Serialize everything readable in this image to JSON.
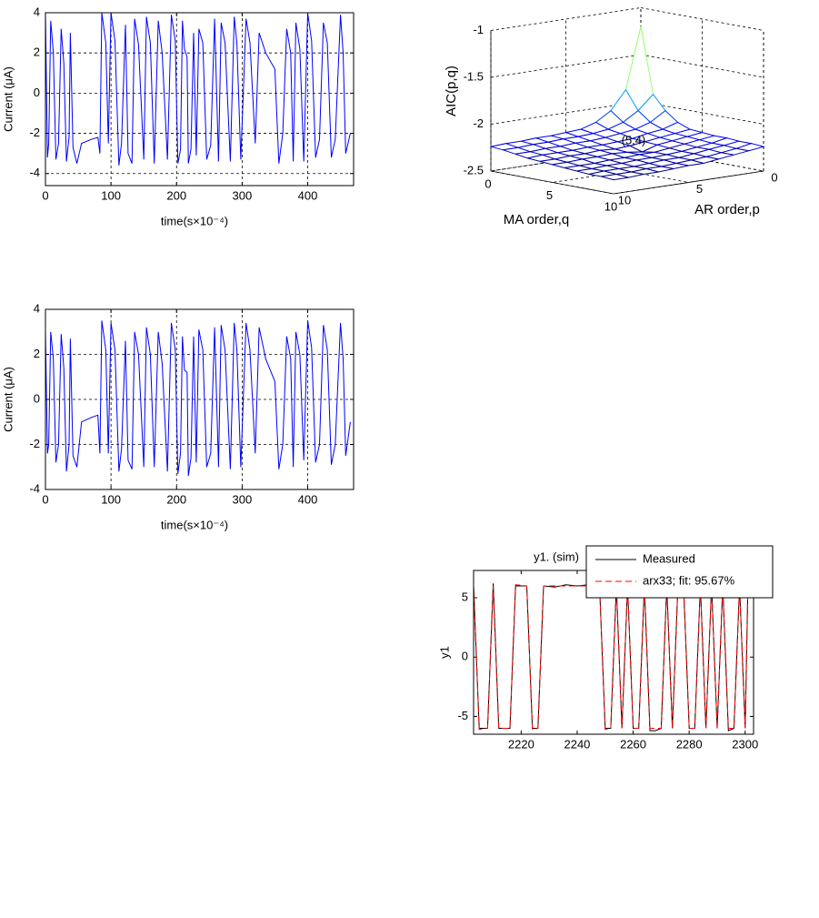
{
  "chart_data": [
    {
      "type": "line",
      "ylabel": "Current (μA)",
      "xlabel": "time(s×10⁻⁴)",
      "x": [
        0,
        3,
        5,
        8,
        12,
        16,
        20,
        24,
        28,
        32,
        36,
        38,
        42,
        48,
        55,
        70,
        80,
        83,
        86,
        92,
        96,
        100,
        106,
        112,
        116,
        122,
        126,
        132,
        136,
        142,
        150,
        154,
        160,
        166,
        172,
        178,
        186,
        192,
        198,
        202,
        206,
        209,
        212,
        216,
        218,
        222,
        226,
        230,
        234,
        240,
        246,
        252,
        258,
        264,
        268,
        274,
        282,
        288,
        292,
        298,
        306,
        312,
        320,
        326,
        336,
        350,
        356,
        362,
        368,
        374,
        378,
        382,
        388,
        394,
        400,
        406,
        412,
        418,
        424,
        430,
        436,
        442,
        450,
        454,
        458,
        465
      ],
      "series": [
        {
          "color": "#0000ff",
          "values": [
            4,
            -3.2,
            -2.5,
            3.6,
            2,
            -3.3,
            -2.5,
            3.2,
            1.5,
            -3.4,
            -2.2,
            3,
            -2.7,
            -3.5,
            -2.5,
            -2.3,
            -2.2,
            -3,
            4,
            2.5,
            -2.5,
            4,
            2.6,
            -3.6,
            -2.5,
            3.4,
            -3,
            -3.5,
            3.7,
            2.4,
            -3.3,
            3.8,
            2.5,
            -3.5,
            3.6,
            2,
            -3.3,
            3.9,
            2.6,
            -3.5,
            -2.8,
            3.6,
            2.2,
            1.8,
            -3.5,
            -2.8,
            3,
            -3.1,
            3.2,
            2.5,
            -3.3,
            -2.6,
            3.7,
            -3.4,
            3.5,
            2.5,
            -3.4,
            3.8,
            2.5,
            -3.3,
            3.7,
            2.5,
            -2.5,
            3,
            2,
            1.2,
            -3.5,
            -2,
            3.2,
            2,
            -3.4,
            3.5,
            2.2,
            -3.4,
            4,
            2.6,
            -3.2,
            -2.3,
            3.5,
            2.5,
            -3.2,
            -2.3,
            3.9,
            2,
            -3,
            -2
          ]
        }
      ],
      "xlim": [
        0,
        470
      ],
      "ylim": [
        -4.6,
        4
      ],
      "xticks": [
        0,
        100,
        200,
        300,
        400
      ],
      "yticks": [
        -4,
        -2,
        0,
        2,
        4
      ],
      "grid": true
    },
    {
      "type": "line",
      "ylabel": "Current (μA)",
      "xlabel": "time(s×10⁻⁴)",
      "x": [
        0,
        3,
        5,
        8,
        12,
        16,
        20,
        24,
        28,
        32,
        36,
        38,
        42,
        48,
        55,
        70,
        80,
        83,
        86,
        92,
        96,
        100,
        106,
        112,
        116,
        122,
        126,
        132,
        136,
        142,
        150,
        154,
        160,
        166,
        172,
        178,
        186,
        192,
        198,
        202,
        206,
        209,
        212,
        216,
        218,
        222,
        226,
        230,
        234,
        240,
        246,
        252,
        258,
        264,
        268,
        274,
        282,
        288,
        292,
        298,
        306,
        312,
        320,
        326,
        336,
        350,
        356,
        362,
        368,
        374,
        378,
        382,
        388,
        394,
        400,
        406,
        412,
        418,
        424,
        430,
        436,
        442,
        450,
        454,
        458,
        465
      ],
      "series": [
        {
          "color": "#0000ff",
          "values": [
            3,
            -2.4,
            -2,
            3,
            1.8,
            -2.8,
            -2,
            2.9,
            1.4,
            -3.2,
            -2,
            2.7,
            -2.5,
            -3,
            -1,
            -0.8,
            -0.7,
            -2.4,
            3.5,
            2.2,
            -2.4,
            3.4,
            2.2,
            -3.2,
            -2.2,
            2.6,
            -2.7,
            -3.1,
            3,
            2,
            -3,
            3.2,
            2,
            -3,
            3,
            1.6,
            -3.2,
            3.4,
            2.2,
            -3.3,
            -2.4,
            2.8,
            1.3,
            1.2,
            -3.4,
            -2.6,
            2.8,
            -2.8,
            3.1,
            2.2,
            -3,
            -2.4,
            3.2,
            -3,
            3.3,
            2.2,
            -3.1,
            3.4,
            2.2,
            -3,
            3.4,
            2.2,
            -2.4,
            3.2,
            1.8,
            0.8,
            -3.1,
            -2,
            2.8,
            1.8,
            -3,
            3,
            2,
            -2.7,
            3.5,
            2.3,
            -2.8,
            -2,
            3.3,
            2.2,
            -2.9,
            -2,
            3.4,
            1.8,
            -2.5,
            -1
          ]
        }
      ],
      "xlim": [
        0,
        470
      ],
      "ylim": [
        -4,
        4
      ],
      "xticks": [
        0,
        100,
        200,
        300,
        400
      ],
      "yticks": [
        -4,
        -2,
        0,
        2,
        4
      ],
      "grid": true
    },
    {
      "type": "surface",
      "zlabel": "AIC(p,q)",
      "qlabel": "MA order,q",
      "plabel": "AR order,p",
      "annotation": "(5,4)",
      "z": [
        [
          -1.2,
          -1.85,
          -2.05,
          -2.15,
          -2.2,
          -2.21,
          -2.22,
          -2.22,
          -2.23,
          -2.23,
          -2.24
        ],
        [
          -1.9,
          -2.05,
          -2.15,
          -2.2,
          -2.22,
          -2.23,
          -2.23,
          -2.24,
          -2.24,
          -2.25,
          -2.25
        ],
        [
          -2.05,
          -2.15,
          -2.2,
          -2.22,
          -2.24,
          -2.25,
          -2.25,
          -2.26,
          -2.26,
          -2.27,
          -2.27
        ],
        [
          -2.15,
          -2.2,
          -2.22,
          -2.25,
          -2.26,
          -2.27,
          -2.27,
          -2.28,
          -2.28,
          -2.28,
          -2.29
        ],
        [
          -2.2,
          -2.22,
          -2.24,
          -2.26,
          -2.28,
          -2.29,
          -2.28,
          -2.29,
          -2.29,
          -2.3,
          -2.3
        ],
        [
          -2.21,
          -2.23,
          -2.25,
          -2.27,
          -2.32,
          -2.3,
          -2.29,
          -2.3,
          -2.3,
          -2.31,
          -2.31
        ],
        [
          -2.22,
          -2.24,
          -2.26,
          -2.28,
          -2.3,
          -2.3,
          -2.31,
          -2.31,
          -2.32,
          -2.32,
          -2.32
        ],
        [
          -2.22,
          -2.25,
          -2.27,
          -2.29,
          -2.3,
          -2.31,
          -2.31,
          -2.32,
          -2.32,
          -2.33,
          -2.33
        ],
        [
          -2.23,
          -2.25,
          -2.27,
          -2.29,
          -2.31,
          -2.31,
          -2.32,
          -2.33,
          -2.33,
          -2.33,
          -2.34
        ],
        [
          -2.23,
          -2.26,
          -2.28,
          -2.3,
          -2.31,
          -2.32,
          -2.33,
          -2.33,
          -2.34,
          -2.34,
          -2.34
        ],
        [
          -2.24,
          -2.26,
          -2.28,
          -2.3,
          -2.32,
          -2.32,
          -2.33,
          -2.34,
          -2.34,
          -2.35,
          -2.35
        ]
      ],
      "zlim": [
        -2.5,
        -1
      ],
      "zticks": [
        -2.5,
        -2,
        -1.5,
        -1
      ],
      "qlim": [
        0,
        10
      ],
      "qticks": [
        0,
        5,
        10
      ],
      "plim": [
        0,
        10
      ],
      "pticks": [
        0,
        5,
        10
      ],
      "grid": true
    },
    {
      "type": "line",
      "title": "y1. (sim)",
      "ylabel": "y1",
      "x": [
        2203,
        2205,
        2208,
        2210,
        2212,
        2216,
        2218,
        2222,
        2224,
        2226,
        2228,
        2232,
        2236,
        2240,
        2244,
        2248,
        2250,
        2252,
        2254,
        2256,
        2258,
        2260,
        2262,
        2264,
        2266,
        2268,
        2270,
        2272,
        2274,
        2276,
        2278,
        2280,
        2282,
        2284,
        2286,
        2288,
        2290,
        2292,
        2294,
        2296,
        2298,
        2300,
        2301
      ],
      "series": [
        {
          "name": "Measured",
          "color": "#000000",
          "linestyle": "solid",
          "values": [
            6,
            -6,
            -6,
            6.2,
            -6,
            -6,
            6,
            6,
            -6,
            -6,
            6,
            5.9,
            6.1,
            6,
            6.1,
            6,
            -6,
            -6,
            6,
            -6,
            6,
            -6,
            -6,
            6,
            -6.2,
            -6.2,
            -6,
            6,
            -6,
            6,
            6,
            -6,
            -6,
            6,
            -6,
            6,
            -6,
            6,
            -6.2,
            -6,
            6,
            -6,
            6
          ]
        },
        {
          "name": "arx33; fit: 95.67%",
          "color": "#ff0000",
          "linestyle": "dashed",
          "values": [
            6,
            -6.1,
            -6,
            6,
            -6,
            -6,
            6.1,
            6,
            -6.1,
            -6,
            6,
            6,
            6,
            6,
            6,
            6,
            -6.1,
            -6,
            6,
            -6,
            6,
            -6,
            -6,
            6.1,
            -6,
            -6,
            -6,
            6,
            -6,
            6,
            6.1,
            -6,
            -6,
            6.1,
            -6,
            6,
            -6,
            6,
            -6,
            -6,
            6,
            -6,
            6.1
          ]
        }
      ],
      "xlim": [
        2203,
        2303
      ],
      "ylim": [
        -6.5,
        7.3
      ],
      "xticks": [
        2220,
        2240,
        2260,
        2280,
        2300
      ],
      "yticks": [
        -5,
        0,
        5
      ],
      "grid": false,
      "legend": "upper right"
    }
  ]
}
